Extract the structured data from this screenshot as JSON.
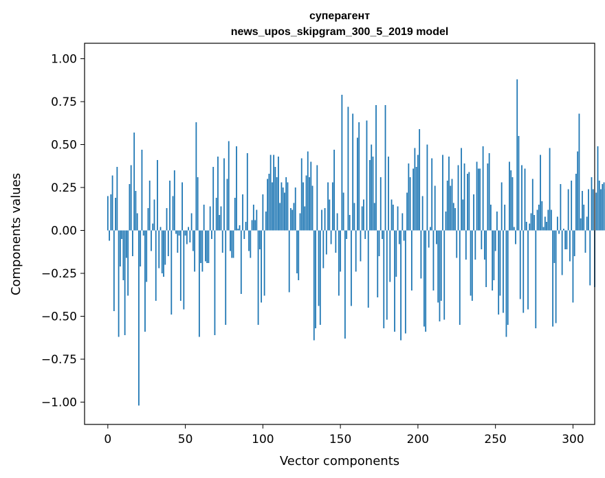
{
  "chart_data": {
    "type": "bar",
    "title": "суперагент",
    "subtitle": "news_upos_skipgram_300_5_2019 model",
    "xlabel": "Vector components",
    "ylabel": "Components values",
    "xlim": [
      -15,
      314
    ],
    "ylim": [
      -1.13,
      1.09
    ],
    "xticks": [
      0,
      50,
      100,
      150,
      200,
      250,
      300
    ],
    "xtick_labels": [
      "0",
      "50",
      "100",
      "150",
      "200",
      "250",
      "300"
    ],
    "yticks": [
      -1.0,
      -0.75,
      -0.5,
      -0.25,
      0.0,
      0.25,
      0.5,
      0.75,
      1.0
    ],
    "ytick_labels": [
      "−1.00",
      "−0.75",
      "−0.50",
      "−0.25",
      "0.00",
      "0.25",
      "0.50",
      "0.75",
      "1.00"
    ],
    "grid": false,
    "bar_color": "#1f77b4",
    "values": [
      0.2,
      -0.06,
      0.21,
      0.32,
      -0.47,
      0.19,
      0.37,
      -0.62,
      -0.21,
      -0.05,
      -0.29,
      -0.61,
      -0.16,
      -0.38,
      0.27,
      0.38,
      -0.15,
      0.57,
      0.23,
      0.1,
      -1.02,
      -0.21,
      0.47,
      -0.03,
      -0.59,
      -0.3,
      0.13,
      0.29,
      -0.12,
      0.04,
      0.18,
      -0.41,
      0.41,
      -0.22,
      0.02,
      -0.25,
      -0.27,
      -0.2,
      0.13,
      -0.15,
      0.29,
      -0.49,
      0.2,
      0.35,
      -0.02,
      -0.13,
      -0.03,
      -0.41,
      0.28,
      -0.46,
      -0.03,
      -0.08,
      0.02,
      -0.07,
      0.1,
      -0.12,
      -0.24,
      0.63,
      0.31,
      -0.62,
      -0.19,
      -0.24,
      0.15,
      -0.18,
      -0.19,
      -0.19,
      0.14,
      -0.05,
      0.37,
      -0.61,
      0.19,
      0.43,
      0.09,
      0.14,
      -0.13,
      0.42,
      -0.55,
      0.3,
      0.52,
      -0.12,
      -0.16,
      -0.16,
      0.19,
      0.49,
      0.01,
      0.03,
      -0.37,
      0.21,
      -0.05,
      0.05,
      0.45,
      -0.12,
      -0.16,
      0.06,
      0.15,
      0.06,
      0.12,
      -0.55,
      -0.11,
      -0.42,
      0.21,
      -0.38,
      0.11,
      0.3,
      0.33,
      0.44,
      0.28,
      0.44,
      0.37,
      0.31,
      0.43,
      0.16,
      0.28,
      0.25,
      0.22,
      0.31,
      0.28,
      -0.36,
      0.13,
      0.12,
      0.16,
      0.25,
      -0.25,
      -0.29,
      0.1,
      0.42,
      0.28,
      0.14,
      0.32,
      0.46,
      0.31,
      0.4,
      0.26,
      -0.64,
      -0.57,
      0.38,
      -0.44,
      -0.55,
      0.12,
      -0.22,
      0.13,
      -0.14,
      0.28,
      0.18,
      -0.08,
      0.28,
      0.47,
      -0.13,
      0.1,
      -0.38,
      -0.24,
      0.79,
      0.22,
      -0.63,
      -0.05,
      0.72,
      0.09,
      -0.44,
      0.68,
      0.16,
      -0.24,
      0.54,
      0.63,
      -0.18,
      0.14,
      0.18,
      -0.05,
      0.64,
      -0.45,
      0.41,
      0.5,
      0.43,
      0.16,
      0.73,
      -0.39,
      -0.15,
      0.31,
      -0.05,
      -0.57,
      0.73,
      -0.52,
      0.43,
      -0.3,
      0.18,
      0.15,
      -0.59,
      -0.27,
      0.14,
      -0.08,
      -0.64,
      0.1,
      -0.06,
      -0.6,
      0.22,
      0.39,
      0.31,
      -0.35,
      0.36,
      0.48,
      0.37,
      0.44,
      0.59,
      -0.28,
      0.2,
      -0.56,
      -0.59,
      0.5,
      -0.1,
      0.02,
      0.42,
      -0.35,
      0.26,
      -0.08,
      -0.42,
      -0.53,
      -0.41,
      0.44,
      -0.52,
      0.11,
      0.29,
      0.43,
      0.26,
      0.3,
      0.16,
      0.13,
      -0.16,
      0.38,
      -0.55,
      0.48,
      0.18,
      0.39,
      -0.17,
      0.33,
      0.34,
      -0.38,
      -0.41,
      0.21,
      -0.17,
      0.4,
      0.36,
      0.36,
      -0.11,
      0.49,
      -0.17,
      -0.33,
      0.39,
      0.45,
      0.15,
      -0.35,
      -0.29,
      -0.12,
      0.11,
      -0.49,
      -0.38,
      0.28,
      -0.48,
      0.15,
      -0.62,
      -0.55,
      0.4,
      0.35,
      0.31,
      0.02,
      -0.08,
      0.88,
      0.55,
      -0.4,
      0.38,
      -0.48,
      0.36,
      0.05,
      -0.46,
      0.04,
      0.1,
      0.3,
      0.09,
      -0.57,
      0.12,
      0.15,
      0.44,
      0.17,
      0.02,
      0.08,
      0.05,
      0.12,
      0.48,
      0.12,
      -0.56,
      -0.19,
      -0.54,
      0.08,
      -0.02,
      0.27,
      -0.26,
      0.01,
      -0.11,
      -0.11,
      0.24,
      -0.18,
      0.29,
      -0.42,
      -0.15,
      0.33,
      0.46,
      0.68,
      0.07,
      0.23,
      0.15,
      -0.13,
      0.08,
      0.24,
      -0.32,
      0.31,
      0.24,
      -0.33,
      0.22,
      0.49,
      0.29,
      0.24,
      0.27,
      0.28,
      0.24,
      0.23,
      0.22,
      0.18,
      0.21
    ]
  }
}
